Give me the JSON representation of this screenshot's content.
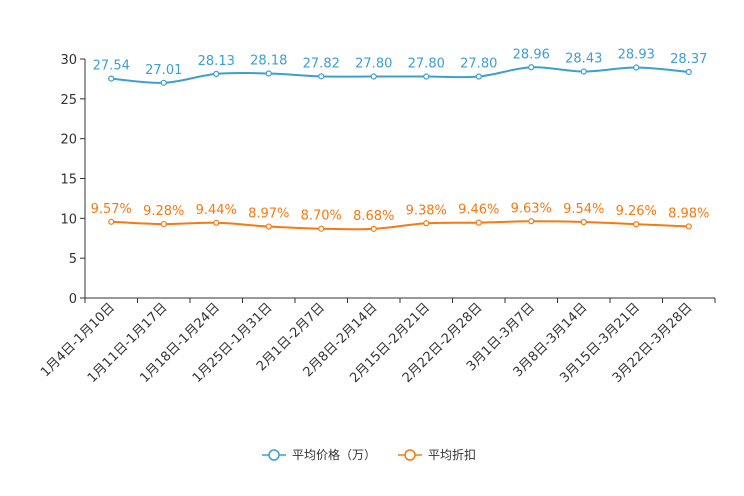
{
  "chart_data": {
    "type": "line",
    "categories": [
      "1月4日-1月10日",
      "1月11日-1月17日",
      "1月18日-1月24日",
      "1月25日-1月31日",
      "2月1日-2月7日",
      "2月8日-2月14日",
      "2月15日-2月21日",
      "2月22日-2月28日",
      "3月1日-3月7日",
      "3月8日-3月14日",
      "3月15日-3月21日",
      "3月22日-3月28日"
    ],
    "ylim": [
      0,
      30
    ],
    "yticks": [
      0,
      5,
      10,
      15,
      20,
      25,
      30
    ],
    "series": [
      {
        "name": "平均价格（万）",
        "color": "#3c9fd0",
        "values": [
          27.54,
          27.01,
          28.13,
          28.18,
          27.82,
          27.8,
          27.8,
          27.8,
          28.96,
          28.43,
          28.93,
          28.37
        ],
        "labels": [
          "27.54",
          "27.01",
          "28.13",
          "28.18",
          "27.82",
          "27.80",
          "27.80",
          "27.80",
          "28.96",
          "28.43",
          "28.93",
          "28.37"
        ]
      },
      {
        "name": "平均折扣",
        "color": "#f57a12",
        "values": [
          9.57,
          9.28,
          9.44,
          8.97,
          8.7,
          8.68,
          9.38,
          9.46,
          9.63,
          9.54,
          9.26,
          8.98
        ],
        "labels": [
          "9.57%",
          "9.28%",
          "9.44%",
          "8.97%",
          "8.70%",
          "8.68%",
          "9.38%",
          "9.46%",
          "9.63%",
          "9.54%",
          "9.26%",
          "8.98%"
        ]
      }
    ]
  }
}
